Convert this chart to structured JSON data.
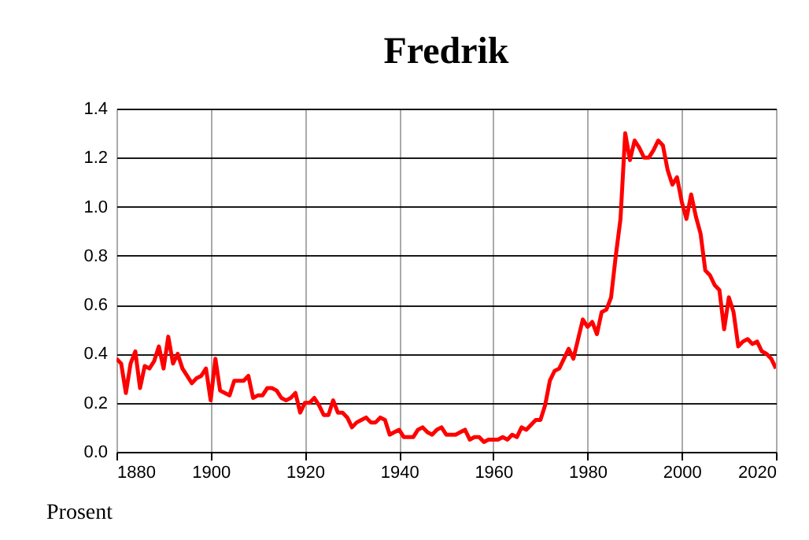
{
  "chart_data": {
    "type": "line",
    "title": "Fredrik",
    "ylabel": "Prosent",
    "x": [
      1880,
      1881,
      1882,
      1883,
      1884,
      1885,
      1886,
      1887,
      1888,
      1889,
      1890,
      1891,
      1892,
      1893,
      1894,
      1895,
      1896,
      1897,
      1898,
      1899,
      1900,
      1901,
      1902,
      1903,
      1904,
      1905,
      1906,
      1907,
      1908,
      1909,
      1910,
      1911,
      1912,
      1913,
      1914,
      1915,
      1916,
      1917,
      1918,
      1919,
      1920,
      1921,
      1922,
      1923,
      1924,
      1925,
      1926,
      1927,
      1928,
      1929,
      1930,
      1931,
      1932,
      1933,
      1934,
      1935,
      1936,
      1937,
      1938,
      1939,
      1940,
      1941,
      1942,
      1943,
      1944,
      1945,
      1946,
      1947,
      1948,
      1949,
      1950,
      1951,
      1952,
      1953,
      1954,
      1955,
      1956,
      1957,
      1958,
      1959,
      1960,
      1961,
      1962,
      1963,
      1964,
      1965,
      1966,
      1967,
      1968,
      1969,
      1970,
      1971,
      1972,
      1973,
      1974,
      1975,
      1976,
      1977,
      1978,
      1979,
      1980,
      1981,
      1982,
      1983,
      1984,
      1985,
      1986,
      1987,
      1988,
      1989,
      1990,
      1991,
      1992,
      1993,
      1994,
      1995,
      1996,
      1997,
      1998,
      1999,
      2000,
      2001,
      2002,
      2003,
      2004,
      2005,
      2006,
      2007,
      2008,
      2009,
      2010,
      2011,
      2012,
      2013,
      2014,
      2015,
      2016,
      2017,
      2018,
      2019,
      2020
    ],
    "series": [
      {
        "color": "#ff0000",
        "values": [
          0.38,
          0.36,
          0.24,
          0.36,
          0.41,
          0.26,
          0.35,
          0.34,
          0.37,
          0.43,
          0.34,
          0.47,
          0.36,
          0.4,
          0.34,
          0.31,
          0.28,
          0.3,
          0.31,
          0.34,
          0.21,
          0.38,
          0.25,
          0.24,
          0.23,
          0.29,
          0.29,
          0.29,
          0.31,
          0.22,
          0.23,
          0.23,
          0.26,
          0.26,
          0.25,
          0.22,
          0.21,
          0.22,
          0.24,
          0.16,
          0.2,
          0.2,
          0.22,
          0.19,
          0.15,
          0.15,
          0.21,
          0.16,
          0.16,
          0.14,
          0.1,
          0.12,
          0.13,
          0.14,
          0.12,
          0.12,
          0.14,
          0.13,
          0.07,
          0.08,
          0.09,
          0.06,
          0.06,
          0.06,
          0.09,
          0.1,
          0.08,
          0.07,
          0.09,
          0.1,
          0.07,
          0.07,
          0.07,
          0.08,
          0.09,
          0.05,
          0.06,
          0.06,
          0.04,
          0.05,
          0.05,
          0.05,
          0.06,
          0.05,
          0.07,
          0.06,
          0.1,
          0.09,
          0.11,
          0.13,
          0.13,
          0.19,
          0.29,
          0.33,
          0.34,
          0.38,
          0.42,
          0.38,
          0.46,
          0.54,
          0.51,
          0.53,
          0.48,
          0.57,
          0.58,
          0.63,
          0.8,
          0.95,
          1.3,
          1.19,
          1.27,
          1.24,
          1.2,
          1.2,
          1.23,
          1.27,
          1.25,
          1.15,
          1.09,
          1.12,
          1.02,
          0.95,
          1.05,
          0.96,
          0.89,
          0.74,
          0.72,
          0.68,
          0.66,
          0.5,
          0.63,
          0.57,
          0.43,
          0.45,
          0.46,
          0.44,
          0.45,
          0.41,
          0.4,
          0.38,
          0.34
        ]
      }
    ],
    "xlim": [
      1880,
      2020
    ],
    "xticks": [
      1880,
      1900,
      1920,
      1940,
      1960,
      1980,
      2000,
      2020
    ],
    "ylim": [
      0,
      1.4
    ],
    "yticks": [
      {
        "value": 0,
        "label": "0.0"
      },
      0.2,
      0.4,
      0.6,
      0.8,
      {
        "value": 1,
        "label": "1.0"
      },
      1.2,
      1.4
    ],
    "grid": true,
    "marker": "none",
    "line_style": "solid"
  }
}
